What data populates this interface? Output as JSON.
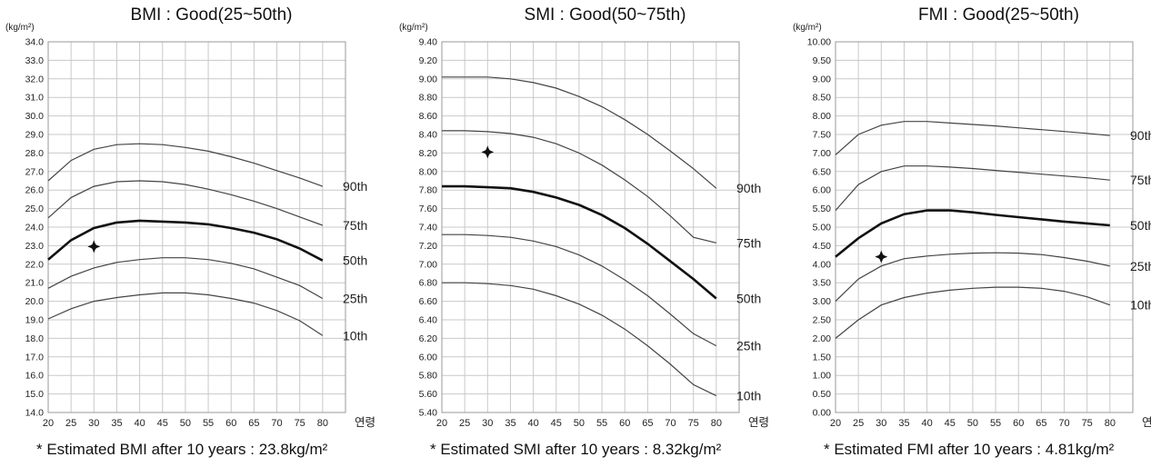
{
  "chart_data": [
    {
      "type": "line",
      "title": "BMI : Good(25~50th)",
      "ylabel": "(kg/m²)",
      "xlabel": "연령",
      "xlim": [
        20,
        85
      ],
      "ylim": [
        14.0,
        34.0
      ],
      "x_ticks": [
        "20",
        "25",
        "30",
        "35",
        "40",
        "45",
        "50",
        "55",
        "60",
        "65",
        "70",
        "75",
        "80"
      ],
      "y_ticks": [
        "14.0",
        "15.0",
        "16.0",
        "17.0",
        "18.0",
        "19.0",
        "20.0",
        "21.0",
        "22.0",
        "23.0",
        "24.0",
        "25.0",
        "26.0",
        "27.0",
        "28.0",
        "29.0",
        "30.0",
        "31.0",
        "32.0",
        "33.0",
        "34.0"
      ],
      "ages": [
        20,
        25,
        30,
        35,
        40,
        45,
        50,
        55,
        60,
        65,
        70,
        75,
        80
      ],
      "series": [
        {
          "name": "90th",
          "bold": false,
          "values": [
            26.5,
            27.6,
            28.2,
            28.45,
            28.5,
            28.45,
            28.3,
            28.1,
            27.8,
            27.45,
            27.05,
            26.65,
            26.2
          ]
        },
        {
          "name": "75th",
          "bold": false,
          "values": [
            24.5,
            25.6,
            26.2,
            26.45,
            26.5,
            26.45,
            26.3,
            26.05,
            25.75,
            25.4,
            25.0,
            24.55,
            24.1
          ]
        },
        {
          "name": "50th",
          "bold": true,
          "values": [
            22.25,
            23.3,
            23.95,
            24.25,
            24.35,
            24.3,
            24.25,
            24.15,
            23.95,
            23.7,
            23.35,
            22.85,
            22.2
          ]
        },
        {
          "name": "25th",
          "bold": false,
          "values": [
            20.7,
            21.35,
            21.8,
            22.1,
            22.25,
            22.35,
            22.35,
            22.25,
            22.05,
            21.75,
            21.3,
            20.85,
            20.15
          ]
        },
        {
          "name": "10th",
          "bold": false,
          "values": [
            19.05,
            19.6,
            20.0,
            20.2,
            20.35,
            20.45,
            20.45,
            20.35,
            20.15,
            19.9,
            19.5,
            18.95,
            18.15
          ]
        }
      ],
      "point": {
        "age": 30,
        "value": 22.95
      },
      "note": "* Estimated BMI after 10 years : 23.8kg/m²"
    },
    {
      "type": "line",
      "title": "SMI : Good(50~75th)",
      "ylabel": "(kg/m²)",
      "xlabel": "연령",
      "xlim": [
        20,
        85
      ],
      "ylim": [
        5.4,
        9.4
      ],
      "x_ticks": [
        "20",
        "25",
        "30",
        "35",
        "40",
        "45",
        "50",
        "55",
        "60",
        "65",
        "70",
        "75",
        "80"
      ],
      "y_ticks": [
        "5.40",
        "5.60",
        "5.80",
        "6.00",
        "6.20",
        "6.40",
        "6.60",
        "6.80",
        "7.00",
        "7.20",
        "7.40",
        "7.60",
        "7.80",
        "8.00",
        "8.20",
        "8.40",
        "8.60",
        "8.80",
        "9.00",
        "9.20",
        "9.40"
      ],
      "ages": [
        20,
        25,
        30,
        35,
        40,
        45,
        50,
        55,
        60,
        65,
        70,
        75,
        80
      ],
      "series": [
        {
          "name": "90th",
          "bold": false,
          "values": [
            9.02,
            9.02,
            9.02,
            9.0,
            8.96,
            8.9,
            8.81,
            8.7,
            8.56,
            8.4,
            8.22,
            8.03,
            7.82
          ]
        },
        {
          "name": "75th",
          "bold": false,
          "values": [
            8.44,
            8.44,
            8.43,
            8.41,
            8.37,
            8.3,
            8.2,
            8.07,
            7.91,
            7.73,
            7.52,
            7.29,
            7.23
          ]
        },
        {
          "name": "50th",
          "bold": true,
          "values": [
            7.84,
            7.84,
            7.83,
            7.82,
            7.78,
            7.72,
            7.64,
            7.53,
            7.39,
            7.22,
            7.03,
            6.84,
            6.63
          ]
        },
        {
          "name": "25th",
          "bold": false,
          "values": [
            7.32,
            7.32,
            7.31,
            7.29,
            7.25,
            7.19,
            7.1,
            6.98,
            6.83,
            6.66,
            6.46,
            6.25,
            6.12
          ]
        },
        {
          "name": "10th",
          "bold": false,
          "values": [
            6.8,
            6.8,
            6.79,
            6.77,
            6.73,
            6.66,
            6.57,
            6.45,
            6.3,
            6.12,
            5.92,
            5.7,
            5.58
          ]
        }
      ],
      "point": {
        "age": 30,
        "value": 8.21
      },
      "note": "* Estimated SMI after 10 years : 8.32kg/m²"
    },
    {
      "type": "line",
      "title": "FMI : Good(25~50th)",
      "ylabel": "(kg/m²)",
      "xlabel": "연령",
      "xlim": [
        20,
        85
      ],
      "ylim": [
        0.0,
        10.0
      ],
      "x_ticks": [
        "20",
        "25",
        "30",
        "35",
        "40",
        "45",
        "50",
        "55",
        "60",
        "65",
        "70",
        "75",
        "80"
      ],
      "y_ticks": [
        "0.00",
        "0.50",
        "1.00",
        "1.50",
        "2.00",
        "2.50",
        "3.00",
        "3.50",
        "4.00",
        "4.50",
        "5.00",
        "5.50",
        "6.00",
        "6.50",
        "7.00",
        "7.50",
        "8.00",
        "8.50",
        "9.00",
        "9.50",
        "10.00"
      ],
      "ages": [
        20,
        25,
        30,
        35,
        40,
        45,
        50,
        55,
        60,
        65,
        70,
        75,
        80
      ],
      "series": [
        {
          "name": "90th",
          "bold": false,
          "values": [
            6.95,
            7.5,
            7.75,
            7.85,
            7.85,
            7.81,
            7.77,
            7.73,
            7.68,
            7.63,
            7.58,
            7.53,
            7.47
          ]
        },
        {
          "name": "75th",
          "bold": false,
          "values": [
            5.45,
            6.15,
            6.5,
            6.65,
            6.65,
            6.62,
            6.58,
            6.53,
            6.48,
            6.43,
            6.38,
            6.33,
            6.27
          ]
        },
        {
          "name": "50th",
          "bold": true,
          "values": [
            4.2,
            4.7,
            5.1,
            5.35,
            5.45,
            5.45,
            5.4,
            5.33,
            5.27,
            5.21,
            5.15,
            5.1,
            5.05
          ]
        },
        {
          "name": "25th",
          "bold": false,
          "values": [
            3.0,
            3.6,
            3.95,
            4.15,
            4.22,
            4.27,
            4.3,
            4.31,
            4.3,
            4.26,
            4.18,
            4.08,
            3.95
          ]
        },
        {
          "name": "10th",
          "bold": false,
          "values": [
            2.0,
            2.5,
            2.9,
            3.1,
            3.22,
            3.3,
            3.35,
            3.38,
            3.38,
            3.35,
            3.27,
            3.12,
            2.9
          ]
        }
      ],
      "point": {
        "age": 30,
        "value": 4.2
      },
      "note": "* Estimated FMI after 10 years : 4.81kg/m²"
    }
  ]
}
